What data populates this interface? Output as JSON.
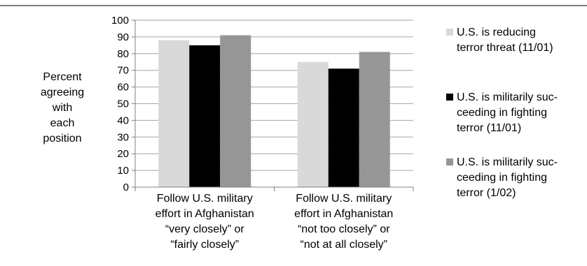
{
  "chart_data": {
    "type": "bar",
    "categories": [
      [
        "Follow U.S. military",
        "effort in Afghanistan",
        "“very closely” or",
        "“fairly closely”"
      ],
      [
        "Follow U.S. military",
        "effort in Afghanistan",
        "“not too closely” or",
        "“not at all closely”"
      ]
    ],
    "series": [
      {
        "name": [
          "U.S. is reducing",
          "terror threat (11/01)"
        ],
        "color": "#d9d9d9",
        "values": [
          88,
          75
        ]
      },
      {
        "name": [
          "U.S. is militarily suc-",
          "ceeding in fighting",
          "terror (11/01)"
        ],
        "color": "#000000",
        "values": [
          85,
          71
        ]
      },
      {
        "name": [
          "U.S. is militarily suc-",
          "ceeding in fighting",
          "terror (1/02)"
        ],
        "color": "#969696",
        "values": [
          91,
          81
        ]
      }
    ],
    "ylabel": [
      "Percent",
      "agreeing",
      "with",
      "each",
      "position"
    ],
    "yticks": [
      0,
      10,
      20,
      30,
      40,
      50,
      60,
      70,
      80,
      90,
      100
    ],
    "ylim": [
      0,
      100
    ],
    "grid": true,
    "legend_position": "right",
    "colors": {
      "grid": "#a6a6a6",
      "axis": "#808080",
      "top_rule": "#000000"
    }
  }
}
